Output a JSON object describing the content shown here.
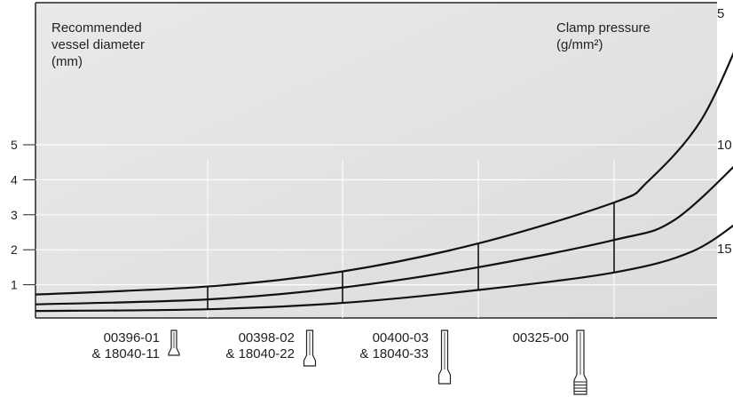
{
  "chart_data": {
    "type": "line",
    "left_axis": {
      "label_lines": [
        "Recommended",
        "vessel diameter",
        "(mm)"
      ],
      "ticks": [
        "1",
        "2",
        "3",
        "4",
        "5"
      ]
    },
    "right_axis": {
      "label_lines": [
        "Clamp pressure",
        "(g/mm²)"
      ],
      "labels": [
        "5",
        "10",
        "15"
      ]
    },
    "series": [
      {
        "end_label": "5",
        "points": [
          [
            0,
            0.72
          ],
          [
            194,
            0.95
          ],
          [
            346,
            1.38
          ],
          [
            499,
            2.18
          ],
          [
            652,
            3.35
          ],
          [
            690,
            3.95
          ],
          [
            750,
            5.7
          ],
          [
            800,
            8.4
          ]
        ]
      },
      {
        "end_label": "10",
        "points": [
          [
            0,
            0.44
          ],
          [
            194,
            0.58
          ],
          [
            346,
            0.92
          ],
          [
            499,
            1.5
          ],
          [
            652,
            2.28
          ],
          [
            720,
            2.85
          ],
          [
            800,
            4.7
          ]
        ]
      },
      {
        "end_label": "15",
        "points": [
          [
            0,
            0.25
          ],
          [
            194,
            0.3
          ],
          [
            346,
            0.48
          ],
          [
            499,
            0.85
          ],
          [
            652,
            1.35
          ],
          [
            740,
            1.95
          ],
          [
            800,
            2.95
          ]
        ]
      }
    ],
    "markers": [
      {
        "x": 194,
        "products": [
          "00396-01",
          "& 18040-11"
        ]
      },
      {
        "x": 346,
        "products": [
          "00398-02",
          "& 18040-22"
        ]
      },
      {
        "x": 499,
        "products": [
          "00400-03",
          "& 18040-33"
        ]
      },
      {
        "x": 652,
        "products": [
          "00325-00",
          ""
        ]
      }
    ]
  }
}
